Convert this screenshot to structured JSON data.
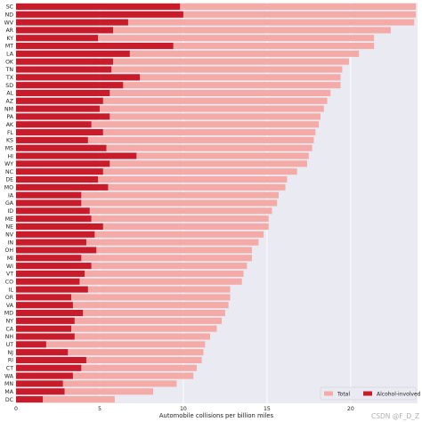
{
  "chart_data": {
    "type": "bar",
    "orientation": "horizontal",
    "categories": [
      "SC",
      "ND",
      "WV",
      "AR",
      "KY",
      "MT",
      "LA",
      "OK",
      "TN",
      "TX",
      "SD",
      "AL",
      "AZ",
      "NM",
      "PA",
      "AK",
      "FL",
      "KS",
      "MS",
      "HI",
      "WY",
      "NC",
      "DE",
      "MO",
      "IA",
      "GA",
      "ID",
      "ME",
      "NE",
      "NV",
      "IN",
      "OH",
      "MI",
      "WI",
      "VT",
      "CO",
      "IL",
      "OR",
      "VA",
      "MD",
      "NY",
      "CA",
      "NH",
      "UT",
      "NJ",
      "RI",
      "CT",
      "WA",
      "MN",
      "MA",
      "DC"
    ],
    "series": [
      {
        "name": "Total",
        "color": "#f4aaa6",
        "values": [
          23.9,
          23.9,
          23.8,
          22.4,
          21.4,
          21.4,
          20.5,
          19.9,
          19.5,
          19.4,
          19.4,
          18.8,
          18.6,
          18.4,
          18.2,
          18.1,
          17.9,
          17.8,
          17.7,
          17.5,
          17.4,
          16.8,
          16.2,
          16.1,
          15.7,
          15.6,
          15.3,
          15.1,
          15.1,
          14.8,
          14.5,
          14.1,
          14.1,
          13.8,
          13.6,
          13.5,
          12.8,
          12.8,
          12.7,
          12.5,
          12.3,
          12.0,
          11.6,
          11.3,
          11.2,
          11.1,
          10.8,
          10.6,
          9.6,
          8.2,
          5.9
        ]
      },
      {
        "name": "Alcohol-involved",
        "color": "#c81c2a",
        "values": [
          9.8,
          10.0,
          6.7,
          5.8,
          4.9,
          9.4,
          6.8,
          5.8,
          5.7,
          7.4,
          6.4,
          5.6,
          5.2,
          5.0,
          5.6,
          4.5,
          5.2,
          4.3,
          5.4,
          7.2,
          5.6,
          5.2,
          4.9,
          5.5,
          3.9,
          3.9,
          4.4,
          4.5,
          5.2,
          4.7,
          4.2,
          4.8,
          3.9,
          4.5,
          4.1,
          3.8,
          4.3,
          3.3,
          3.4,
          4.0,
          3.5,
          3.3,
          3.5,
          1.8,
          3.1,
          4.2,
          3.9,
          3.4,
          2.8,
          2.9,
          1.6
        ]
      }
    ],
    "xlabel": "Automobile collisions per billion miles",
    "ylabel": "",
    "xlim": [
      0,
      24
    ],
    "xticks": [
      "0",
      "5",
      "10",
      "15",
      "20"
    ],
    "grid": true,
    "legend_position": "lower-right"
  },
  "watermark": "CSDN @F_D_Z"
}
